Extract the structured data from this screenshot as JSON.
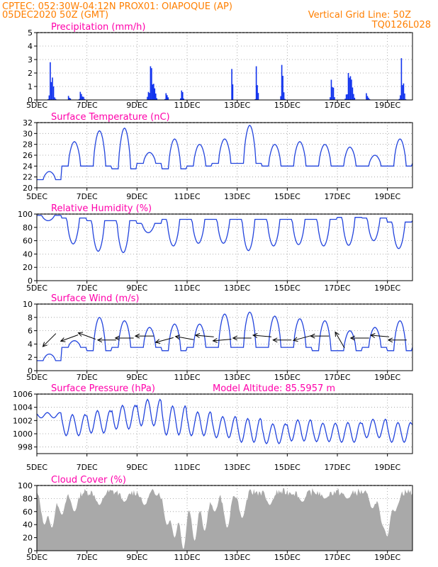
{
  "header": {
    "line1": "CPTEC:   052:30W-04:12N   PROX01: OIAPOQUE (AP)",
    "line2_left": "05DEC2020 50Z (GMT)",
    "line2_right": "Vertical Grid Line: 50Z",
    "line3_right": "TQ0126L028",
    "color": "#ff7f00"
  },
  "x_ticks": [
    "5DEC",
    "7DEC",
    "9DEC",
    "11DEC",
    "13DEC",
    "15DEC",
    "17DEC",
    "19DEC"
  ],
  "title_color": "#ff00aa",
  "line_color": "#2244dd",
  "bar_color": "#1133ee",
  "cloud_color": "#a9a9a9",
  "chart_data": [
    {
      "id": "precip",
      "type": "bar",
      "title": "Precipitation (mm/h)",
      "ylim": [
        0,
        5
      ],
      "yticks": [
        0,
        1,
        2,
        3,
        4,
        5
      ],
      "x_range_days": [
        5,
        20
      ],
      "events": [
        {
          "day": 5.6,
          "peak": 2.8,
          "width": 0.35
        },
        {
          "day": 6.3,
          "peak": 0.3,
          "width": 0.2
        },
        {
          "day": 6.8,
          "peak": 0.6,
          "width": 0.35
        },
        {
          "day": 9.6,
          "peak": 2.5,
          "width": 0.5
        },
        {
          "day": 10.2,
          "peak": 0.5,
          "width": 0.3
        },
        {
          "day": 10.8,
          "peak": 0.7,
          "width": 0.25
        },
        {
          "day": 12.8,
          "peak": 2.3,
          "width": 0.15
        },
        {
          "day": 13.8,
          "peak": 2.5,
          "width": 0.2
        },
        {
          "day": 14.8,
          "peak": 2.6,
          "width": 0.25
        },
        {
          "day": 16.8,
          "peak": 1.5,
          "width": 0.3
        },
        {
          "day": 17.5,
          "peak": 2.0,
          "width": 0.5
        },
        {
          "day": 18.2,
          "peak": 0.5,
          "width": 0.3
        },
        {
          "day": 19.6,
          "peak": 3.1,
          "width": 0.3
        }
      ]
    },
    {
      "id": "temp",
      "type": "line",
      "title": "Surface Temperature (nC)",
      "ylim": [
        20,
        32
      ],
      "yticks": [
        20,
        22,
        24,
        26,
        28,
        30,
        32
      ],
      "x_range_days": [
        5,
        20
      ],
      "daily_max": [
        23.0,
        28.5,
        30.5,
        31.0,
        26.5,
        29.0,
        28.0,
        29.0,
        31.5,
        28.0,
        28.5,
        28.0,
        27.5,
        26.0,
        29.0,
        28.5
      ],
      "daily_min": [
        21.5,
        24.0,
        24.0,
        23.5,
        24.5,
        23.5,
        24.0,
        24.5,
        24.5,
        24.0,
        24.0,
        24.0,
        24.0,
        24.0,
        24.0,
        24.5
      ]
    },
    {
      "id": "rh",
      "type": "line",
      "title": "Relative Humidity (%)",
      "ylim": [
        0,
        100
      ],
      "yticks": [
        0,
        20,
        40,
        60,
        80,
        100
      ],
      "x_range_days": [
        5,
        20
      ],
      "daily_max": [
        98,
        94,
        90,
        90,
        86,
        92,
        92,
        92,
        92,
        92,
        92,
        92,
        95,
        94,
        88,
        90
      ],
      "daily_min": [
        90,
        55,
        44,
        42,
        72,
        52,
        56,
        56,
        45,
        52,
        54,
        52,
        53,
        60,
        48,
        58
      ]
    },
    {
      "id": "wind",
      "type": "line",
      "title": "Surface Wind (m/s)",
      "ylim": [
        0,
        10
      ],
      "yticks": [
        0,
        2,
        4,
        6,
        8,
        10
      ],
      "x_range_days": [
        5,
        20
      ],
      "daily_max": [
        2.5,
        4.5,
        8.0,
        7.5,
        6.5,
        7.0,
        7.0,
        8.5,
        8.8,
        8.2,
        7.8,
        7.5,
        6.0,
        6.5,
        7.5,
        8.0
      ],
      "daily_min": [
        1.5,
        3.5,
        3.0,
        3.5,
        3.5,
        3.0,
        3.5,
        3.5,
        3.5,
        3.5,
        3.5,
        3.0,
        3.0,
        3.5,
        3.0,
        3.5
      ],
      "arrow_days": [
        5.5,
        6.3,
        7.0,
        7.8,
        8.5,
        9.3,
        10.1,
        10.9,
        11.7,
        12.4,
        13.2,
        14.0,
        14.8,
        15.6,
        16.3,
        17.1,
        17.9,
        18.7,
        19.4
      ],
      "arrow_dirs_deg": [
        225,
        200,
        160,
        180,
        180,
        180,
        195,
        170,
        175,
        185,
        180,
        175,
        180,
        195,
        180,
        120,
        180,
        175,
        180
      ]
    },
    {
      "id": "pressure",
      "type": "line",
      "title": "Surface Pressure (hPa)",
      "extra_label": "Model Altitude: 85.5957 m",
      "ylim": [
        997,
        1006
      ],
      "yticks": [
        998,
        1000,
        1002,
        1004,
        1006
      ],
      "x_range_days": [
        5,
        20
      ],
      "daily_mean": [
        1002.8,
        1001.3,
        1001.8,
        1002.5,
        1003.2,
        1002.0,
        1001.5,
        1001.0,
        1000.5,
        1000.0,
        1000.5,
        1000.2,
        1000.2,
        1000.8,
        1000.2,
        1000.5
      ],
      "semidiurnal_amp": [
        0.4,
        1.6,
        1.7,
        1.8,
        2.0,
        2.2,
        1.8,
        1.6,
        1.8,
        1.5,
        1.6,
        1.4,
        1.5,
        1.4,
        1.5,
        1.6
      ]
    },
    {
      "id": "cloud",
      "type": "area",
      "title": "Cloud Cover (%)",
      "ylim": [
        0,
        100
      ],
      "yticks": [
        0,
        20,
        40,
        60,
        80,
        100
      ],
      "x_range_days": [
        5,
        20
      ],
      "base_level": 90,
      "dips": [
        {
          "day": 5.3,
          "to": 40
        },
        {
          "day": 5.6,
          "to": 35
        },
        {
          "day": 6.0,
          "to": 55
        },
        {
          "day": 6.5,
          "to": 60
        },
        {
          "day": 7.5,
          "to": 70
        },
        {
          "day": 8.5,
          "to": 75
        },
        {
          "day": 9.3,
          "to": 70
        },
        {
          "day": 10.2,
          "to": 40
        },
        {
          "day": 10.5,
          "to": 20
        },
        {
          "day": 10.85,
          "to": 2
        },
        {
          "day": 11.3,
          "to": 15
        },
        {
          "day": 11.7,
          "to": 30
        },
        {
          "day": 12.1,
          "to": 60
        },
        {
          "day": 12.6,
          "to": 35
        },
        {
          "day": 13.2,
          "to": 50
        },
        {
          "day": 14.3,
          "to": 70
        },
        {
          "day": 15.6,
          "to": 75
        },
        {
          "day": 16.5,
          "to": 80
        },
        {
          "day": 17.4,
          "to": 80
        },
        {
          "day": 18.4,
          "to": 65
        },
        {
          "day": 18.8,
          "to": 45
        },
        {
          "day": 19.0,
          "to": 20
        },
        {
          "day": 19.3,
          "to": 60
        }
      ]
    }
  ]
}
